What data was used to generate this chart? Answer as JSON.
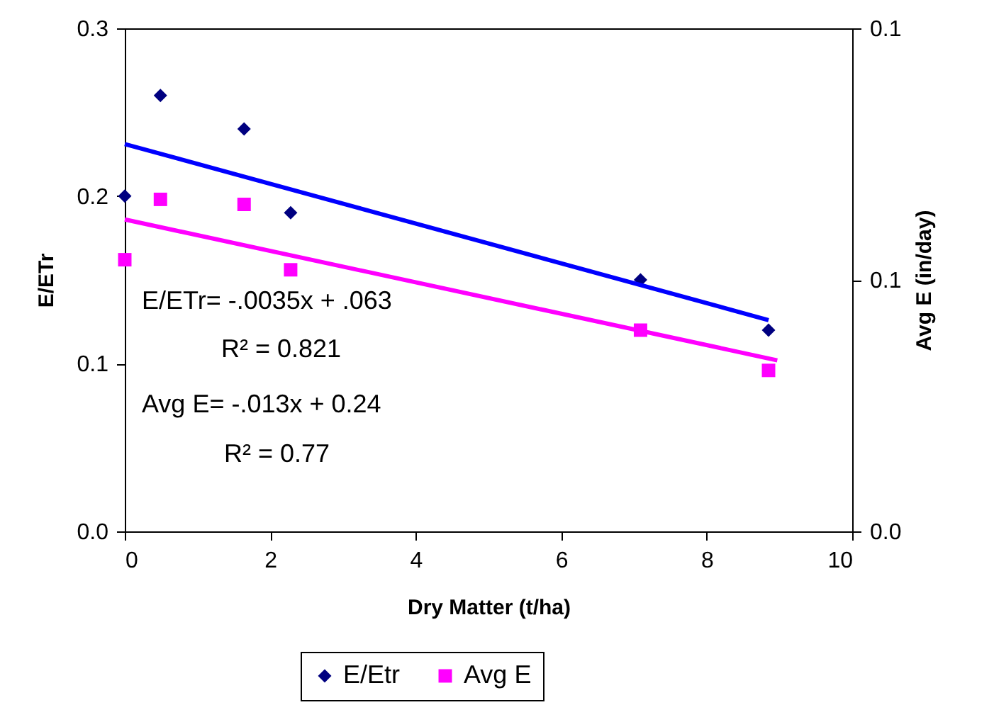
{
  "chart_data": {
    "type": "scatter",
    "xlabel": "Dry Matter (t/ha)",
    "ylabel": "E/ETr",
    "y2label": "Avg E (in/day)",
    "xlim": [
      0,
      10
    ],
    "xticks": [
      0,
      2,
      4,
      6,
      8,
      10
    ],
    "ylim": [
      0,
      0.3
    ],
    "yticks": [
      {
        "value": 0,
        "label": "0.0"
      },
      0.1,
      0.2,
      0.3
    ],
    "y2lim": [
      0,
      0.1
    ],
    "y2ticks": [
      {
        "value": 0,
        "label": "0.0"
      },
      {
        "value": 0.05,
        "label": "0.1"
      },
      0.1
    ],
    "grid": false,
    "legend": "bottom",
    "series": [
      {
        "name": "E/Etr",
        "marker": "diamond",
        "color": "#000080",
        "x": [
          0,
          0.49,
          1.64,
          2.28,
          7.09,
          8.85
        ],
        "values": [
          0.2,
          0.26,
          0.24,
          0.19,
          0.15,
          0.12
        ]
      },
      {
        "name": "Avg E",
        "marker": "square",
        "axis": "y2",
        "color": "#ff00ff",
        "x": [
          0,
          0.49,
          1.64,
          2.28,
          7.09,
          8.85
        ],
        "values": [
          0.054,
          0.066,
          0.065,
          0.052,
          0.04,
          0.032
        ]
      },
      {
        "type": "line",
        "line_style": "solid",
        "color": "#0000ff",
        "x": [
          0,
          8.85
        ],
        "values": [
          0.231,
          0.126
        ]
      },
      {
        "type": "line",
        "line_style": "solid",
        "axis": "y2",
        "color": "#ff00ff",
        "x": [
          0,
          8.97
        ],
        "values": [
          0.062,
          0.034
        ]
      }
    ],
    "annotations": [
      "E/ETr= -.0035x + .063",
      "R² = 0.821",
      "Avg E= -.013x + 0.24",
      "R² = 0.77"
    ]
  }
}
